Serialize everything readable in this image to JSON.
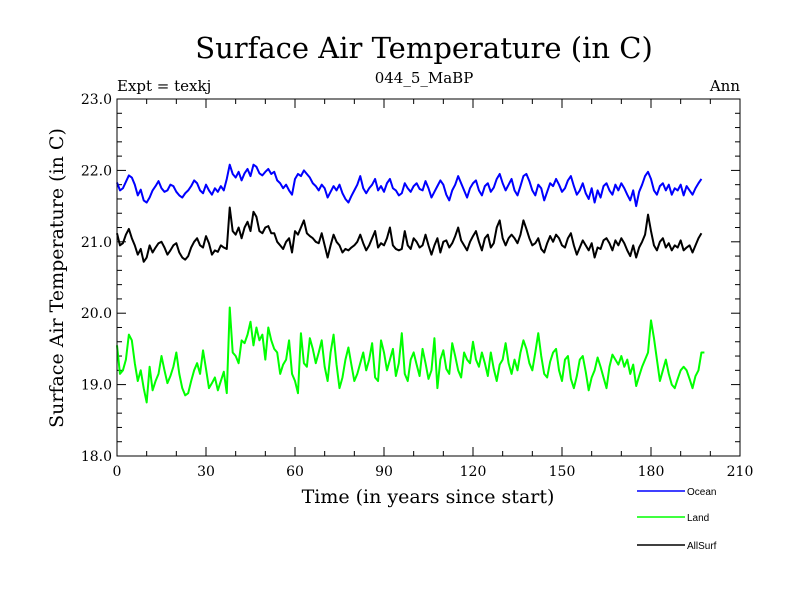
{
  "chart_data": {
    "type": "line",
    "title": "Surface Air Temperature (in C)",
    "subtitle": "044_5_MaBP",
    "left_label": "Expt = texkj",
    "right_label": "Ann",
    "xlabel": "Time (in years since start)",
    "ylabel": "Surface Air Temperature (in C)",
    "xlim": [
      0,
      210
    ],
    "ylim": [
      18.0,
      23.0
    ],
    "x_ticks": [
      0,
      30,
      60,
      90,
      120,
      150,
      180,
      210
    ],
    "x_tick_labels": [
      "0",
      "30",
      "60",
      "90",
      "120",
      "150",
      "180",
      "210"
    ],
    "y_ticks": [
      18,
      19,
      20,
      21,
      22,
      23
    ],
    "y_tick_labels": [
      "18.0",
      "19.0",
      "20.0",
      "21.0",
      "22.0",
      "23.0"
    ],
    "x_minor_step": 10,
    "y_minor_step": 0.2,
    "legend_position": "bottom-right, below plot",
    "series": [
      {
        "name": "Ocean",
        "color": "#0000ff",
        "values": [
          21.83,
          21.72,
          21.75,
          21.84,
          21.93,
          21.9,
          21.8,
          21.65,
          21.73,
          21.58,
          21.55,
          21.62,
          21.72,
          21.78,
          21.85,
          21.75,
          21.7,
          21.72,
          21.8,
          21.78,
          21.7,
          21.65,
          21.62,
          21.68,
          21.72,
          21.78,
          21.86,
          21.82,
          21.72,
          21.68,
          21.8,
          21.72,
          21.66,
          21.75,
          21.7,
          21.78,
          21.72,
          21.88,
          22.08,
          21.95,
          21.9,
          21.98,
          21.86,
          21.96,
          22.02,
          21.92,
          22.08,
          22.05,
          21.96,
          21.93,
          21.98,
          22.02,
          21.95,
          21.98,
          21.86,
          21.82,
          21.75,
          21.8,
          21.72,
          21.66,
          21.88,
          21.95,
          21.92,
          22.0,
          21.95,
          21.9,
          21.82,
          21.78,
          21.72,
          21.8,
          21.75,
          21.62,
          21.7,
          21.78,
          21.72,
          21.8,
          21.68,
          21.6,
          21.55,
          21.64,
          21.72,
          21.8,
          21.92,
          21.75,
          21.68,
          21.75,
          21.8,
          21.88,
          21.72,
          21.78,
          21.7,
          21.82,
          21.88,
          21.75,
          21.72,
          21.65,
          21.68,
          21.82,
          21.75,
          21.7,
          21.78,
          21.82,
          21.74,
          21.72,
          21.85,
          21.75,
          21.62,
          21.7,
          21.78,
          21.86,
          21.8,
          21.66,
          21.58,
          21.72,
          21.8,
          21.92,
          21.82,
          21.72,
          21.62,
          21.75,
          21.82,
          21.86,
          21.72,
          21.65,
          21.78,
          21.82,
          21.7,
          21.76,
          21.88,
          21.95,
          21.82,
          21.72,
          21.8,
          21.88,
          21.72,
          21.65,
          21.78,
          21.92,
          21.95,
          21.85,
          21.72,
          21.65,
          21.8,
          21.75,
          21.58,
          21.7,
          21.82,
          21.78,
          21.88,
          21.8,
          21.7,
          21.75,
          21.86,
          21.92,
          21.78,
          21.66,
          21.72,
          21.82,
          21.68,
          21.6,
          21.75,
          21.55,
          21.72,
          21.62,
          21.78,
          21.82,
          21.72,
          21.66,
          21.8,
          21.72,
          21.82,
          21.75,
          21.66,
          21.58,
          21.72,
          21.5,
          21.7,
          21.8,
          21.92,
          21.98,
          21.88,
          21.72,
          21.66,
          21.78,
          21.82,
          21.72,
          21.8,
          21.66,
          21.75,
          21.72,
          21.8,
          21.65,
          21.78,
          21.72,
          21.66,
          21.75,
          21.82,
          21.88
        ]
      },
      {
        "name": "Land",
        "color": "#00ff00",
        "values": [
          19.55,
          19.15,
          19.2,
          19.35,
          19.7,
          19.62,
          19.3,
          19.05,
          19.2,
          18.95,
          18.75,
          19.25,
          18.92,
          19.05,
          19.15,
          19.4,
          19.2,
          19.02,
          19.12,
          19.25,
          19.45,
          19.15,
          18.95,
          18.85,
          18.88,
          19.05,
          19.2,
          19.3,
          19.15,
          19.48,
          19.22,
          18.95,
          19.02,
          19.1,
          18.92,
          19.05,
          19.18,
          18.88,
          20.08,
          19.45,
          19.4,
          19.3,
          19.62,
          19.58,
          19.7,
          19.88,
          19.55,
          19.8,
          19.62,
          19.7,
          19.35,
          19.8,
          19.62,
          19.5,
          19.45,
          19.15,
          19.28,
          19.35,
          19.62,
          19.15,
          19.05,
          18.88,
          19.72,
          19.3,
          19.25,
          19.65,
          19.5,
          19.3,
          19.45,
          19.62,
          19.25,
          19.05,
          19.45,
          19.7,
          19.28,
          18.95,
          19.1,
          19.35,
          19.52,
          19.28,
          19.05,
          19.15,
          19.3,
          19.45,
          19.2,
          19.35,
          19.58,
          19.1,
          19.05,
          19.62,
          19.45,
          19.2,
          19.35,
          19.5,
          19.12,
          19.3,
          19.72,
          19.15,
          19.05,
          19.35,
          19.45,
          19.28,
          19.12,
          19.5,
          19.3,
          19.08,
          19.2,
          19.65,
          18.95,
          19.35,
          19.48,
          19.22,
          19.15,
          19.58,
          19.4,
          19.2,
          19.1,
          19.45,
          19.35,
          19.3,
          19.6,
          19.35,
          19.25,
          19.45,
          19.3,
          19.12,
          19.45,
          19.22,
          19.05,
          19.28,
          19.35,
          19.58,
          19.3,
          19.15,
          19.35,
          19.2,
          19.45,
          19.62,
          19.5,
          19.3,
          19.2,
          19.45,
          19.72,
          19.4,
          19.15,
          19.1,
          19.32,
          19.45,
          19.5,
          19.2,
          19.05,
          19.35,
          19.4,
          19.08,
          18.95,
          19.12,
          19.35,
          19.4,
          19.18,
          18.92,
          19.1,
          19.2,
          19.38,
          19.25,
          19.1,
          18.95,
          19.25,
          19.42,
          19.35,
          19.28,
          19.4,
          19.25,
          19.35,
          19.15,
          19.28,
          18.98,
          19.12,
          19.25,
          19.35,
          19.45,
          19.9,
          19.65,
          19.35,
          19.05,
          19.2,
          19.35,
          19.15,
          19.0,
          18.95,
          19.08,
          19.2,
          19.25,
          19.2,
          19.08,
          18.95,
          19.12,
          19.2,
          19.45,
          19.45
        ]
      },
      {
        "name": "AllSurf",
        "color": "#000000",
        "values": [
          21.12,
          20.95,
          20.98,
          21.1,
          21.18,
          21.05,
          20.95,
          20.82,
          20.9,
          20.72,
          20.78,
          20.95,
          20.85,
          20.92,
          20.98,
          21.0,
          20.92,
          20.82,
          20.88,
          20.95,
          20.98,
          20.85,
          20.78,
          20.75,
          20.8,
          20.92,
          21.0,
          21.05,
          20.95,
          20.92,
          21.08,
          20.98,
          20.82,
          20.88,
          20.86,
          20.95,
          20.92,
          20.9,
          21.48,
          21.15,
          21.1,
          21.2,
          21.05,
          21.2,
          21.28,
          21.15,
          21.42,
          21.35,
          21.15,
          21.12,
          21.2,
          21.22,
          21.12,
          21.12,
          21.0,
          20.95,
          20.9,
          21.0,
          21.05,
          20.85,
          21.15,
          21.1,
          21.2,
          21.3,
          21.12,
          21.08,
          21.05,
          21.0,
          20.98,
          21.12,
          20.95,
          20.78,
          20.95,
          21.1,
          21.0,
          20.95,
          20.85,
          20.9,
          20.88,
          20.92,
          20.95,
          21.0,
          21.1,
          20.98,
          20.88,
          20.95,
          21.05,
          21.15,
          20.92,
          20.98,
          20.95,
          21.05,
          21.2,
          20.95,
          20.9,
          20.88,
          20.9,
          21.15,
          20.95,
          20.9,
          21.05,
          21.0,
          20.92,
          20.95,
          21.1,
          20.95,
          20.82,
          20.95,
          21.05,
          20.85,
          21.0,
          21.02,
          20.92,
          20.98,
          21.08,
          21.2,
          21.02,
          20.95,
          20.88,
          21.0,
          21.08,
          21.15,
          21.0,
          20.88,
          21.05,
          21.1,
          20.92,
          20.98,
          21.2,
          21.3,
          21.05,
          20.95,
          21.05,
          21.1,
          21.05,
          20.98,
          21.1,
          21.3,
          21.18,
          21.05,
          20.95,
          20.98,
          21.05,
          20.9,
          20.85,
          20.98,
          21.08,
          21.0,
          21.1,
          21.05,
          20.95,
          20.92,
          21.05,
          21.12,
          20.95,
          20.82,
          20.92,
          21.02,
          20.95,
          20.88,
          20.98,
          20.78,
          20.92,
          20.9,
          21.02,
          21.05,
          20.98,
          20.88,
          21.02,
          20.95,
          21.05,
          20.98,
          20.88,
          20.8,
          20.95,
          20.78,
          20.92,
          21.0,
          21.1,
          21.38,
          21.15,
          20.95,
          20.88,
          21.0,
          21.05,
          20.92,
          20.98,
          20.88,
          20.95,
          20.92,
          21.02,
          20.88,
          20.92,
          20.95,
          20.85,
          20.95,
          21.05,
          21.12
        ]
      }
    ]
  }
}
